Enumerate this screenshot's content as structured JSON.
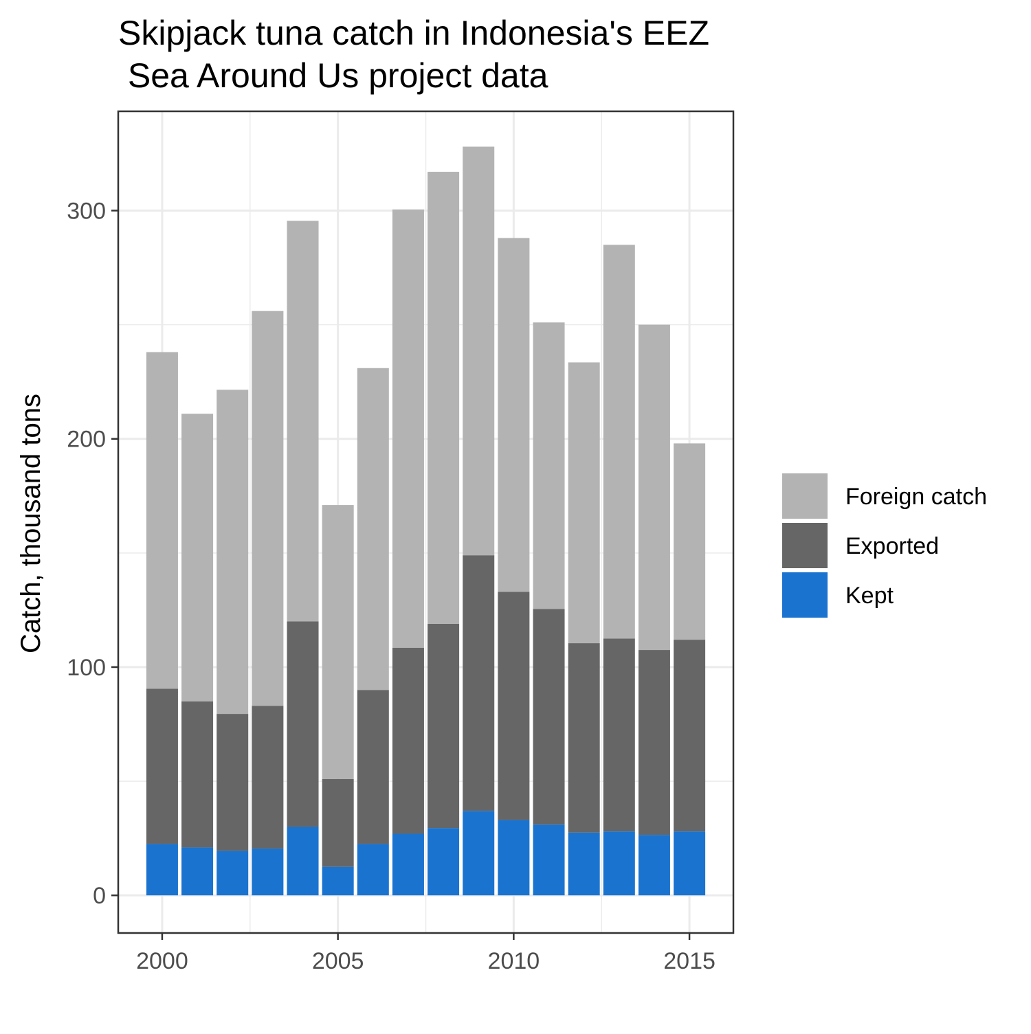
{
  "chart_data": {
    "type": "bar",
    "stacked": true,
    "title_lines": [
      "Skipjack tuna catch in Indonesia's EEZ",
      " Sea Around Us project data"
    ],
    "xlabel": "",
    "ylabel": "Catch, thousand tons",
    "x": [
      2000,
      2001,
      2002,
      2003,
      2004,
      2005,
      2006,
      2007,
      2008,
      2009,
      2010,
      2011,
      2012,
      2013,
      2014,
      2015
    ],
    "xlim": [
      1998.75,
      2016.25
    ],
    "x_ticks": [
      2000,
      2005,
      2010,
      2015
    ],
    "ylim": [
      -16.5,
      343.5
    ],
    "y_ticks": [
      0,
      100,
      200,
      300
    ],
    "y_minor_ticks": [
      50,
      150,
      250
    ],
    "grid": true,
    "legend_position": "right",
    "series": [
      {
        "name": "Kept",
        "color": "#1a73cf",
        "values": [
          22.5,
          21,
          19.5,
          20.5,
          30,
          12.5,
          22.5,
          27,
          29.5,
          37,
          33,
          31,
          27.5,
          28,
          26.5,
          28
        ]
      },
      {
        "name": "Exported",
        "color": "#666666",
        "values": [
          68,
          64,
          60,
          62.5,
          90,
          38.5,
          67.5,
          81.5,
          89.5,
          112,
          100,
          94.5,
          83,
          84.5,
          81,
          84
        ]
      },
      {
        "name": "Foreign catch",
        "color": "#b3b3b3",
        "values": [
          147.5,
          126,
          142,
          173,
          175.5,
          120,
          141,
          192,
          198,
          179,
          155,
          125.5,
          123,
          172.5,
          142.5,
          86
        ]
      }
    ],
    "legend_order": [
      "Foreign catch",
      "Exported",
      "Kept"
    ]
  }
}
